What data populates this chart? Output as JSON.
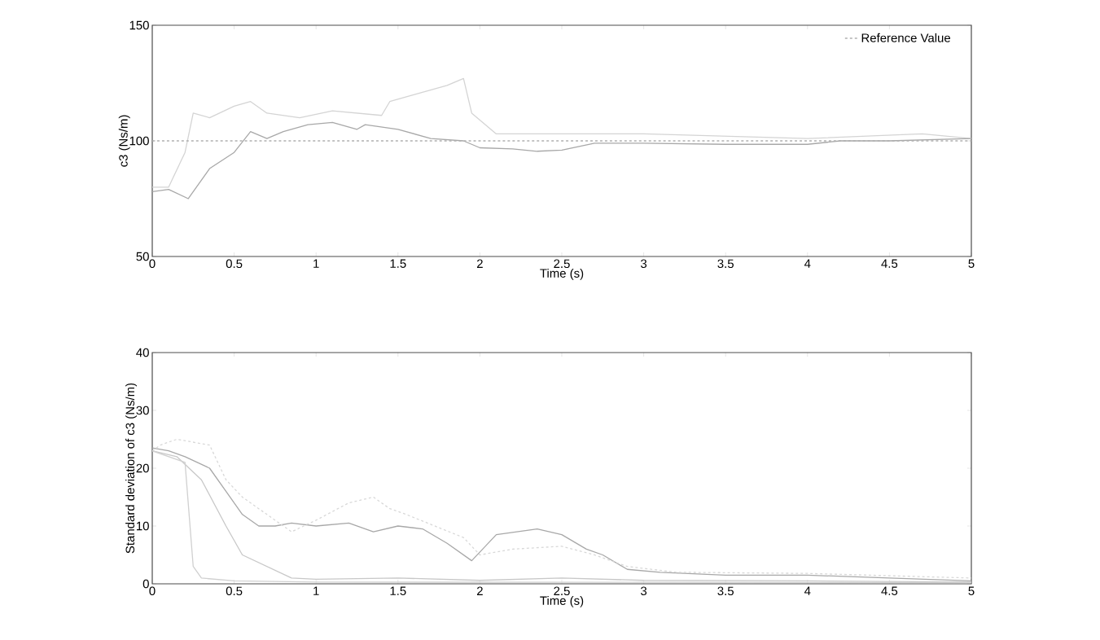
{
  "chart_data": [
    {
      "type": "line",
      "xlabel": "Time (s)",
      "ylabel": "c3 (Ns/m)",
      "xlim": [
        0,
        5
      ],
      "ylim": [
        50,
        150
      ],
      "xticks": [
        0,
        0.5,
        1,
        1.5,
        2,
        2.5,
        3,
        3.5,
        4,
        4.5,
        5
      ],
      "yticks": [
        50,
        100,
        150
      ],
      "legend": "top right",
      "grid": false,
      "series": [
        {
          "color": "#d4d4d4",
          "x": [
            0,
            0.1,
            0.2,
            0.25,
            0.35,
            0.5,
            0.6,
            0.7,
            0.9,
            1.1,
            1.4,
            1.45,
            1.6,
            1.8,
            1.9,
            1.95,
            2.1,
            3,
            4,
            4.7,
            5
          ],
          "values": [
            80,
            80,
            95,
            112,
            110,
            115,
            117,
            112,
            110,
            113,
            111,
            117,
            120,
            124,
            127,
            112,
            103,
            103,
            101,
            103,
            101
          ]
        },
        {
          "color": "#a8a8a8",
          "x": [
            0,
            0.1,
            0.22,
            0.35,
            0.5,
            0.6,
            0.7,
            0.8,
            0.95,
            1.1,
            1.25,
            1.3,
            1.5,
            1.7,
            1.9,
            2,
            2.2,
            2.35,
            2.5,
            2.7,
            3,
            3.5,
            4,
            4.2,
            4.5,
            5
          ],
          "values": [
            78,
            79,
            75,
            88,
            95,
            104,
            101,
            104,
            107,
            108,
            105,
            107,
            105,
            101,
            100,
            97,
            96.5,
            95.5,
            96,
            99,
            99,
            98.5,
            98.5,
            100,
            100,
            101
          ]
        },
        {
          "name": "Reference Value",
          "color": "#b0b0b0",
          "line_style": "dashed",
          "x": [
            0,
            5
          ],
          "values": [
            100,
            100
          ]
        }
      ]
    },
    {
      "type": "line",
      "xlabel": "Time (s)",
      "ylabel": "Standard deviation of c3 (Ns/m)",
      "xlim": [
        0,
        5
      ],
      "ylim": [
        0,
        40
      ],
      "xticks": [
        0,
        0.5,
        1,
        1.5,
        2,
        2.5,
        3,
        3.5,
        4,
        4.5,
        5
      ],
      "yticks": [
        0,
        10,
        20,
        30,
        40
      ],
      "grid": false,
      "series": [
        {
          "color": "#a8a8a8",
          "x": [
            0,
            0.1,
            0.2,
            0.35,
            0.45,
            0.55,
            0.65,
            0.75,
            0.85,
            1.0,
            1.2,
            1.35,
            1.5,
            1.65,
            1.8,
            1.95,
            2.1,
            2.35,
            2.5,
            2.65,
            2.75,
            2.9,
            3.1,
            3.5,
            4,
            4.5,
            5
          ],
          "values": [
            23.5,
            23,
            22,
            20,
            16,
            12,
            10,
            10,
            10.5,
            10,
            10.5,
            9,
            10,
            9.5,
            7,
            4,
            8.5,
            9.5,
            8.5,
            6,
            5,
            2.5,
            2,
            1.5,
            1.5,
            1,
            0.5
          ]
        },
        {
          "color": "#c8c8c8",
          "x": [
            0,
            0.15,
            0.3,
            0.45,
            0.55,
            0.7,
            0.85,
            1.0,
            1.5,
            2.0,
            2.5,
            3,
            4,
            5
          ],
          "values": [
            23,
            22,
            18,
            10,
            5,
            3,
            1,
            0.8,
            1,
            0.6,
            1,
            0.6,
            0.5,
            0.3
          ]
        },
        {
          "color": "#d0d0d0",
          "x": [
            0,
            0.2,
            0.25,
            0.3,
            0.5,
            1,
            5
          ],
          "values": [
            23,
            21,
            3,
            1,
            0.5,
            0.3,
            0.2
          ]
        },
        {
          "color": "#d8d8d8",
          "line_style": "dashed",
          "x": [
            0,
            0.05,
            0.15,
            0.35,
            0.45,
            0.55,
            0.7,
            0.85,
            1.0,
            1.2,
            1.35,
            1.45,
            1.55,
            1.9,
            2.0,
            2.2,
            2.5,
            2.7,
            2.9,
            3.2,
            4,
            5
          ],
          "values": [
            23,
            24,
            25,
            24,
            18,
            15,
            12,
            9,
            11,
            14,
            15,
            13,
            12,
            8,
            5,
            6,
            6.5,
            5,
            3,
            2,
            1.8,
            1
          ]
        }
      ]
    }
  ]
}
